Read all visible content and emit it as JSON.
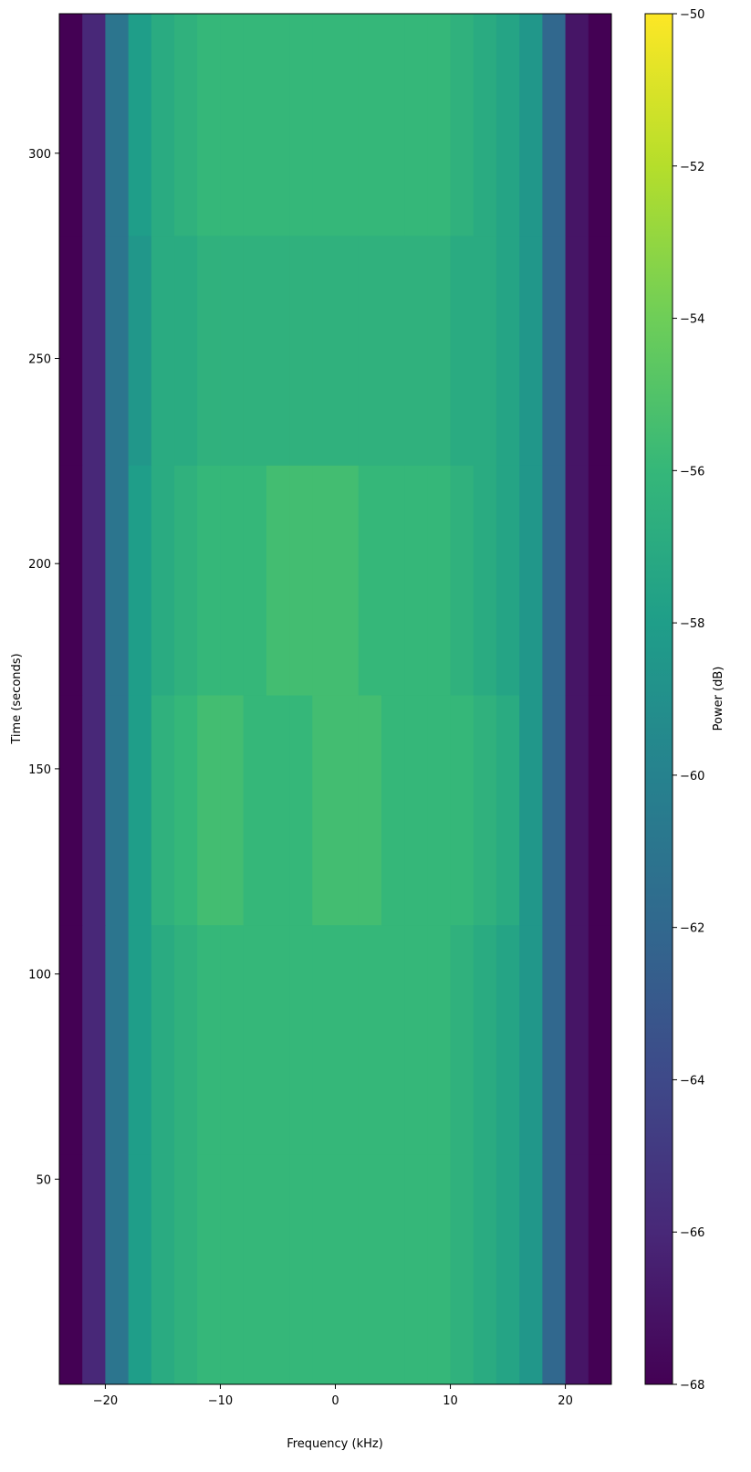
{
  "chart_data": {
    "type": "heatmap",
    "xlabel": "Frequency (kHz)",
    "ylabel": "Time (seconds)",
    "colorbar_label": "Power (dB)",
    "colormap": "viridis",
    "x": [
      -24,
      -22,
      -20,
      -18,
      -16,
      -14,
      -12,
      -10,
      -8,
      -6,
      -4,
      -2,
      0,
      2,
      4,
      6,
      8,
      10,
      12,
      14,
      16,
      18,
      20,
      22,
      24
    ],
    "y": [
      0,
      56,
      112,
      168,
      224,
      280,
      334
    ],
    "z": [
      [
        -68,
        -66,
        -61,
        -58,
        -57,
        -56.5,
        -56,
        -56,
        -56,
        -56,
        -56,
        -56,
        -56,
        -56,
        -56,
        -56,
        -56,
        -56.5,
        -57,
        -57.5,
        -58.5,
        -62,
        -67,
        -68
      ],
      [
        -68,
        -66,
        -61,
        -58,
        -57,
        -56.5,
        -56,
        -56,
        -56,
        -56,
        -56,
        -56,
        -56,
        -56,
        -56,
        -56,
        -56,
        -56.5,
        -57,
        -57.5,
        -58.5,
        -62,
        -67,
        -68
      ],
      [
        -68,
        -66,
        -61,
        -58,
        -56.5,
        -56,
        -55.5,
        -55.5,
        -56,
        -56,
        -56,
        -55.5,
        -55.5,
        -55.5,
        -56,
        -56,
        -56,
        -56,
        -56.5,
        -57,
        -58.5,
        -62,
        -67,
        -68
      ],
      [
        -68,
        -66,
        -61,
        -58,
        -57,
        -56.5,
        -56,
        -56,
        -56,
        -55.5,
        -55.5,
        -55.5,
        -55.5,
        -56,
        -56,
        -56,
        -56,
        -56.5,
        -57,
        -57.5,
        -58.5,
        -62,
        -67,
        -68
      ],
      [
        -68,
        -66,
        -61,
        -58.5,
        -57,
        -57,
        -56.5,
        -56.5,
        -56.5,
        -56.5,
        -56.5,
        -56.5,
        -56.5,
        -56.5,
        -56.5,
        -56.5,
        -56.5,
        -57,
        -57,
        -57.5,
        -58.5,
        -62,
        -67,
        -68
      ],
      [
        -68,
        -66,
        -61,
        -58,
        -57,
        -56.5,
        -56,
        -56,
        -56,
        -56,
        -56,
        -56,
        -56,
        -56,
        -56,
        -56,
        -56,
        -56.5,
        -57,
        -57.5,
        -58.5,
        -62,
        -67,
        -68
      ]
    ],
    "xlim": [
      -24,
      24
    ],
    "ylim": [
      0,
      334
    ],
    "xticks": [
      {
        "value": -20,
        "label": "−20"
      },
      {
        "value": -10,
        "label": "−10"
      },
      0,
      10,
      20
    ],
    "yticks": [
      50,
      100,
      150,
      200,
      250,
      300
    ],
    "vlim": [
      -68,
      -50
    ],
    "cticks": [
      {
        "value": -68,
        "label": "−68"
      },
      {
        "value": -66,
        "label": "−66"
      },
      {
        "value": -64,
        "label": "−64"
      },
      {
        "value": -62,
        "label": "−62"
      },
      {
        "value": -60,
        "label": "−60"
      },
      {
        "value": -58,
        "label": "−58"
      },
      {
        "value": -56,
        "label": "−56"
      },
      {
        "value": -54,
        "label": "−54"
      },
      {
        "value": -52,
        "label": "−52"
      },
      {
        "value": -50,
        "label": "−50"
      }
    ]
  }
}
